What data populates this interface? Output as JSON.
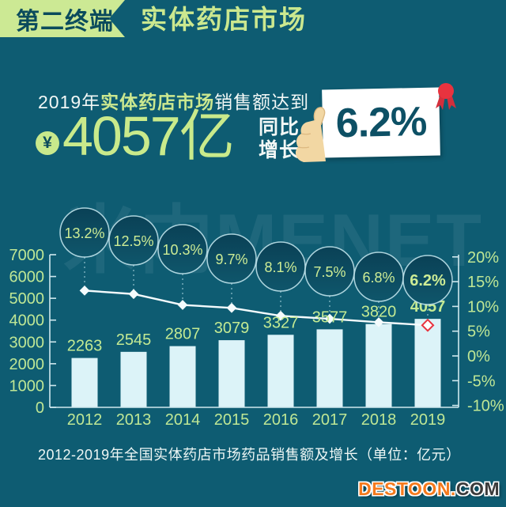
{
  "header": {
    "badge": "第二终端",
    "title": "实体药店市场"
  },
  "stats": {
    "line1_prefix": "2019年",
    "line1_highlight": "实体药店市场",
    "line1_suffix": "销售额达到",
    "currency_symbol": "¥",
    "amount": "4057亿",
    "growth_label_line1": "同比",
    "growth_label_line2": "增长",
    "growth_value": "6.2%"
  },
  "watermark": "米内MENET",
  "chart_data": {
    "type": "bar+line combo",
    "title": "2012-2019年全国实体药店市场药品销售额及增长（单位：亿元）",
    "categories": [
      "2012",
      "2013",
      "2014",
      "2015",
      "2016",
      "2017",
      "2018",
      "2019"
    ],
    "series": [
      {
        "name": "药品销售额(亿元)",
        "type": "bar",
        "values": [
          2263,
          2545,
          2807,
          3079,
          3327,
          3577,
          3820,
          4057
        ],
        "point_labels": [
          "2263",
          "2545",
          "2807",
          "3079",
          "3327",
          "3577",
          "3820",
          "4057"
        ]
      },
      {
        "name": "同比增长(%)",
        "type": "line",
        "values": [
          13.2,
          12.5,
          10.3,
          9.7,
          8.1,
          7.5,
          6.8,
          6.2
        ],
        "point_labels": [
          "13.2%",
          "12.5%",
          "10.3%",
          "9.7%",
          "8.1%",
          "7.5%",
          "6.8%",
          "6.2%"
        ]
      }
    ],
    "left_axis": {
      "labels": [
        "7000",
        "6000",
        "5000",
        "4000",
        "3000",
        "2000",
        "1000",
        "0"
      ],
      "min": 0,
      "max": 7000
    },
    "right_axis": {
      "labels": [
        "20%",
        "15%",
        "10%",
        "5%",
        "0%",
        "-5%",
        "-10%"
      ],
      "min": -10,
      "max": 20
    },
    "grid": "off",
    "legend": "none",
    "colors": {
      "background": "#0e5c72",
      "bar_fill": "#dcf3f8",
      "line": "#f4fbfd",
      "last_marker_stroke": "#e8333f",
      "axis": "#cfe8ee",
      "tick_label": "#bfe795",
      "circle_fill_top": "#0a4156",
      "circle_fill_bottom": "#0f566b",
      "circle_stroke": "#bfe2ea",
      "circle_text": "#cdec95"
    }
  },
  "footer": {
    "watermark_brand": "DESTOON.",
    "watermark_tld": "COM"
  }
}
